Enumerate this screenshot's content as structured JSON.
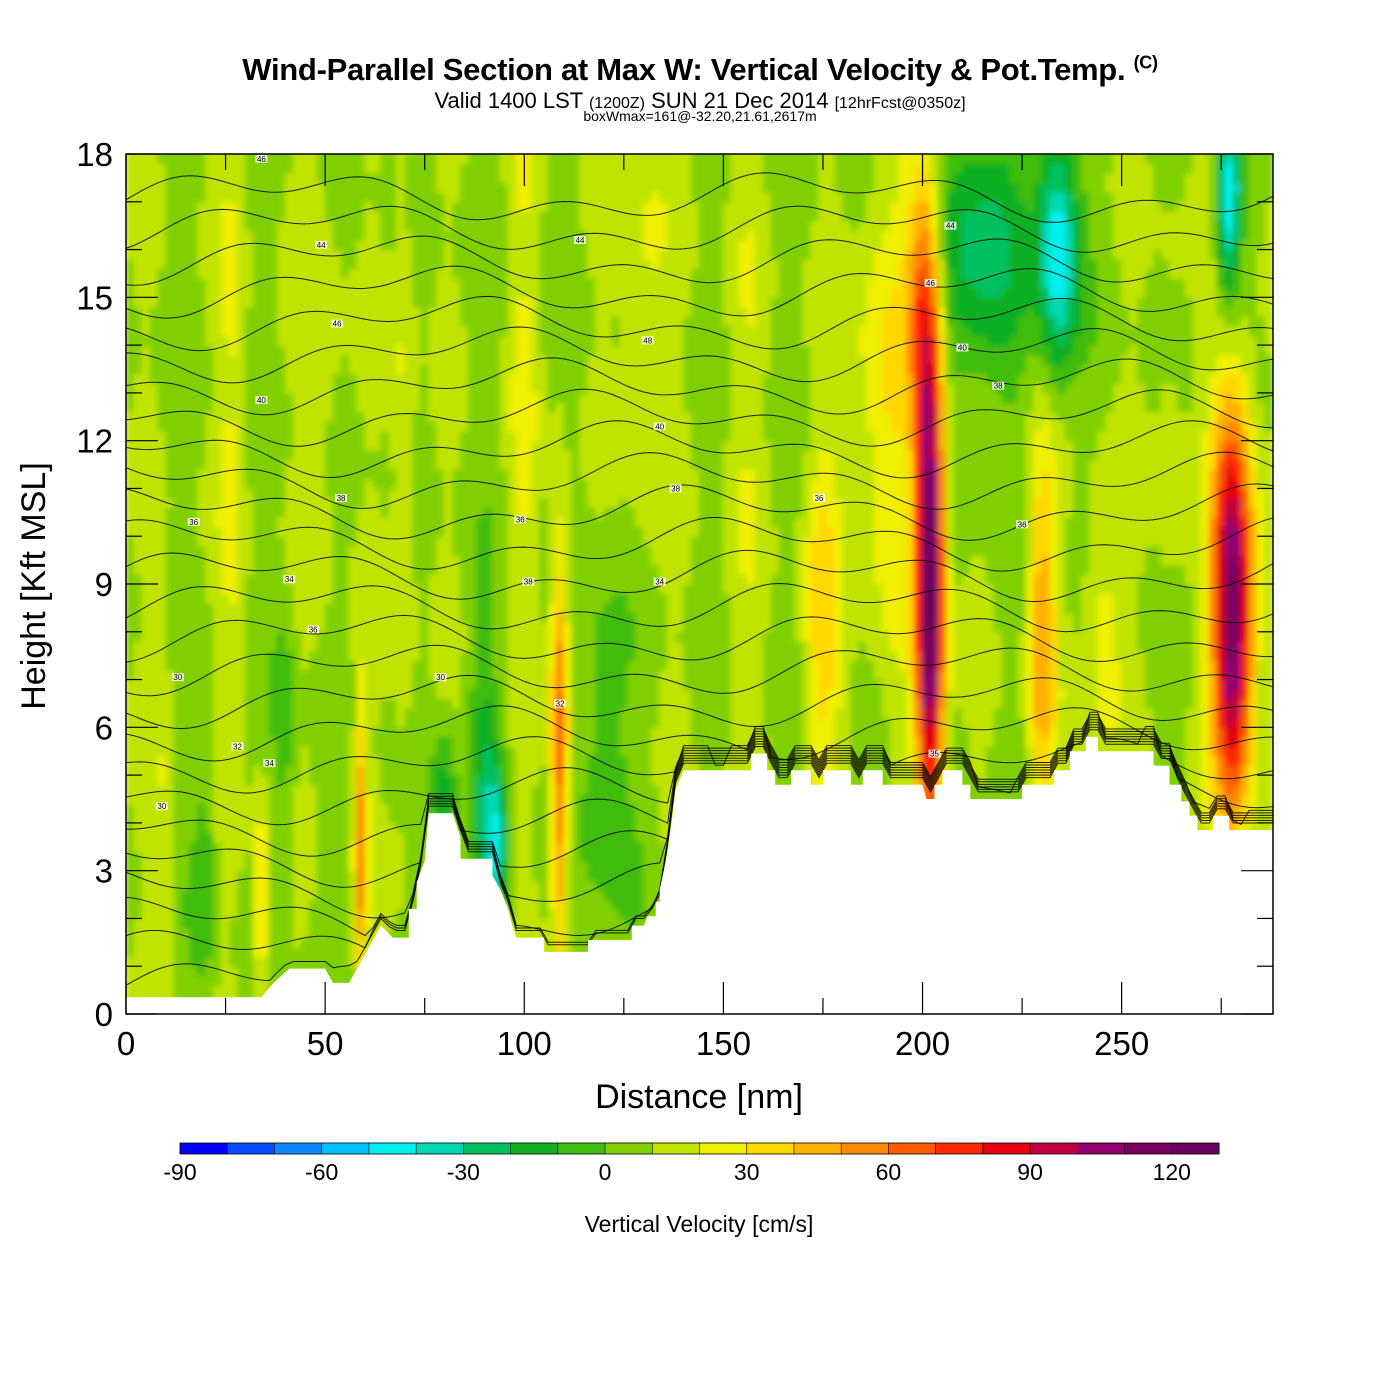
{
  "header": {
    "title": "Wind-Parallel Section at Max W: Vertical Velocity & Pot.Temp.",
    "title_mark": "(C)",
    "subtitle_main": "Valid 1400 LST",
    "subtitle_utc": "(1200Z)",
    "subtitle_date": "SUN 21 Dec 2014",
    "subtitle_fcst": "[12hrFcst@0350z]",
    "note": "boxWmax=161@-32.20,21.61,2617m"
  },
  "chart_data": {
    "type": "heatmap",
    "title": "Wind-Parallel Section at Max W: Vertical Velocity & Pot.Temp.",
    "xlabel": "Distance [nm]",
    "ylabel": "Height [Kft MSL]",
    "xlim": [
      0,
      288
    ],
    "ylim": [
      0,
      18
    ],
    "xticks": [
      "0",
      "50",
      "100",
      "150",
      "200",
      "250"
    ],
    "xtick_values": [
      0,
      50,
      100,
      150,
      200,
      250
    ],
    "yticks": [
      "0",
      "3",
      "6",
      "9",
      "12",
      "15",
      "18"
    ],
    "ytick_values": [
      0,
      3,
      6,
      9,
      12,
      15,
      18
    ],
    "colorbar": {
      "label": "Vertical Velocity [cm/s]",
      "range": [
        -90,
        130
      ],
      "step": 10,
      "tick_labels": [
        "-90",
        "-60",
        "-30",
        "0",
        "30",
        "60",
        "90",
        "120"
      ],
      "tick_values": [
        -90,
        -60,
        -30,
        0,
        30,
        60,
        90,
        120
      ],
      "colors": [
        "#0000ff",
        "#0a4dff",
        "#0f87ff",
        "#00c0ff",
        "#00f0f0",
        "#00d8b0",
        "#00c060",
        "#10b020",
        "#40bc10",
        "#80d000",
        "#c0e400",
        "#f0f000",
        "#ffd800",
        "#ffb000",
        "#ff8800",
        "#ff5a00",
        "#ff2800",
        "#e60010",
        "#c00040",
        "#900070",
        "#7a005f",
        "#6a0060"
      ]
    },
    "terrain_kft": [
      [
        0,
        0.35
      ],
      [
        34,
        0.35
      ],
      [
        37,
        0.65
      ],
      [
        41,
        0.95
      ],
      [
        50,
        0.95
      ],
      [
        52,
        0.65
      ],
      [
        56,
        0.65
      ],
      [
        58,
        0.95
      ],
      [
        60,
        1.25
      ],
      [
        62,
        1.55
      ],
      [
        64,
        1.85
      ],
      [
        67,
        1.6
      ],
      [
        71,
        1.6
      ],
      [
        71,
        2.2
      ],
      [
        73,
        2.2
      ],
      [
        73,
        2.75
      ],
      [
        75,
        3.2
      ],
      [
        76,
        4.2
      ],
      [
        82,
        4.2
      ],
      [
        84,
        3.7
      ],
      [
        84,
        3.25
      ],
      [
        87,
        3.25
      ],
      [
        92,
        3.25
      ],
      [
        92,
        2.9
      ],
      [
        94,
        2.6
      ],
      [
        96,
        2.2
      ],
      [
        97,
        1.85
      ],
      [
        98,
        1.6
      ],
      [
        105,
        1.6
      ],
      [
        105,
        1.3
      ],
      [
        109,
        1.3
      ],
      [
        116,
        1.3
      ],
      [
        116,
        1.55
      ],
      [
        127,
        1.55
      ],
      [
        127,
        1.85
      ],
      [
        130,
        1.85
      ],
      [
        131,
        2.05
      ],
      [
        133,
        2.05
      ],
      [
        133,
        2.35
      ],
      [
        134,
        2.35
      ],
      [
        134,
        2.6
      ],
      [
        135,
        3.0
      ],
      [
        136,
        3.4
      ],
      [
        137,
        4.0
      ],
      [
        138,
        4.7
      ],
      [
        140,
        5.1
      ],
      [
        157,
        5.1
      ],
      [
        157,
        5.45
      ],
      [
        161,
        5.45
      ],
      [
        161,
        5.1
      ],
      [
        163,
        5.1
      ],
      [
        163,
        4.8
      ],
      [
        167,
        4.8
      ],
      [
        167,
        5.1
      ],
      [
        172,
        5.1
      ],
      [
        172,
        4.8
      ],
      [
        175,
        4.8
      ],
      [
        175,
        5.1
      ],
      [
        182,
        5.1
      ],
      [
        182,
        4.8
      ],
      [
        185,
        4.8
      ],
      [
        185,
        5.1
      ],
      [
        190,
        5.1
      ],
      [
        190,
        4.8
      ],
      [
        194,
        4.8
      ],
      [
        194,
        4.8
      ],
      [
        199,
        4.8
      ],
      [
        200,
        4.8
      ],
      [
        201,
        4.5
      ],
      [
        203,
        4.5
      ],
      [
        203,
        4.8
      ],
      [
        205,
        4.8
      ],
      [
        205,
        5.1
      ],
      [
        210,
        5.1
      ],
      [
        210,
        4.8
      ],
      [
        212,
        4.8
      ],
      [
        212,
        4.5
      ],
      [
        216,
        4.5
      ],
      [
        225,
        4.5
      ],
      [
        225,
        4.8
      ],
      [
        233,
        4.8
      ],
      [
        233,
        5.1
      ],
      [
        237,
        5.1
      ],
      [
        237,
        5.5
      ],
      [
        241,
        5.5
      ],
      [
        241,
        5.8
      ],
      [
        244,
        5.8
      ],
      [
        244,
        5.5
      ],
      [
        258,
        5.5
      ],
      [
        258,
        5.2
      ],
      [
        262,
        5.2
      ],
      [
        262,
        4.8
      ],
      [
        265,
        4.8
      ],
      [
        265,
        4.45
      ],
      [
        267,
        4.45
      ],
      [
        267,
        4.15
      ],
      [
        269,
        4.15
      ],
      [
        269,
        3.85
      ],
      [
        273,
        3.85
      ],
      [
        273,
        4.15
      ],
      [
        277,
        4.15
      ],
      [
        277,
        3.85
      ],
      [
        288,
        3.85
      ]
    ],
    "fields": [
      {
        "x": 10,
        "z": 4,
        "w": 3,
        "h": 5,
        "v": 10
      },
      {
        "x": 20,
        "z": 3,
        "w": 3,
        "h": 3,
        "v": -15
      },
      {
        "x": 27,
        "z": 12,
        "w": 4,
        "h": 8,
        "v": 12
      },
      {
        "x": 34,
        "z": 2.2,
        "w": 2,
        "h": 2.4,
        "v": 30
      },
      {
        "x": 40,
        "z": 6,
        "w": 3,
        "h": 3,
        "v": -15
      },
      {
        "x": 50,
        "z": 14,
        "w": 5,
        "h": 6,
        "v": 10
      },
      {
        "x": 59,
        "z": 3.5,
        "w": 1.6,
        "h": 3,
        "v": 45
      },
      {
        "x": 70,
        "z": 12,
        "w": 3,
        "h": 8,
        "v": 15
      },
      {
        "x": 80,
        "z": 4.5,
        "w": 3,
        "h": 1.5,
        "v": -25
      },
      {
        "x": 90,
        "z": 5,
        "w": 4,
        "h": 3,
        "v": -20
      },
      {
        "x": 93,
        "z": 3.5,
        "w": 3,
        "h": 1.5,
        "v": -40
      },
      {
        "x": 100,
        "z": 13,
        "w": 4,
        "h": 6,
        "v": 12
      },
      {
        "x": 109,
        "z": 5.5,
        "w": 2.2,
        "h": 4.5,
        "v": 60
      },
      {
        "x": 120,
        "z": 5.5,
        "w": 6,
        "h": 4,
        "v": -18
      },
      {
        "x": 130,
        "z": 15,
        "w": 6,
        "h": 5,
        "v": 15
      },
      {
        "x": 155,
        "z": 12,
        "w": 6,
        "h": 7,
        "v": 8
      },
      {
        "x": 175,
        "z": 8,
        "w": 5,
        "h": 4,
        "v": 25
      },
      {
        "x": 190,
        "z": 13,
        "w": 8,
        "h": 5,
        "v": 22
      },
      {
        "x": 202,
        "z": 9,
        "w": 3.5,
        "h": 5.5,
        "v": 125
      },
      {
        "x": 200,
        "z": 15,
        "w": 4,
        "h": 3,
        "v": 40
      },
      {
        "x": 215,
        "z": 16,
        "w": 10,
        "h": 3,
        "v": -35
      },
      {
        "x": 234,
        "z": 16,
        "w": 5,
        "h": 2.5,
        "v": -60
      },
      {
        "x": 230,
        "z": 8,
        "w": 3.5,
        "h": 4,
        "v": 40
      },
      {
        "x": 245,
        "z": 8,
        "w": 5,
        "h": 3,
        "v": 20
      },
      {
        "x": 262,
        "z": 12,
        "w": 4,
        "h": 5,
        "v": 10
      },
      {
        "x": 278,
        "z": 7.5,
        "w": 5,
        "h": 3.5,
        "v": 100
      },
      {
        "x": 278,
        "z": 11,
        "w": 5,
        "h": 3,
        "v": 45
      },
      {
        "x": 277,
        "z": 17,
        "w": 3,
        "h": 2,
        "v": -55
      }
    ],
    "contour_labels": [
      {
        "x": 34,
        "y": 17.9,
        "text": "46"
      },
      {
        "x": 49,
        "y": 16.1,
        "text": "44"
      },
      {
        "x": 53,
        "y": 14.45,
        "text": "46"
      },
      {
        "x": 34,
        "y": 12.85,
        "text": "40"
      },
      {
        "x": 54,
        "y": 10.8,
        "text": "38"
      },
      {
        "x": 17,
        "y": 10.3,
        "text": "36"
      },
      {
        "x": 41,
        "y": 9.1,
        "text": "34"
      },
      {
        "x": 47,
        "y": 8.05,
        "text": "36"
      },
      {
        "x": 13,
        "y": 7.05,
        "text": "30"
      },
      {
        "x": 28,
        "y": 5.6,
        "text": "32"
      },
      {
        "x": 36,
        "y": 5.25,
        "text": "34"
      },
      {
        "x": 9,
        "y": 4.35,
        "text": "30"
      },
      {
        "x": 79,
        "y": 7.05,
        "text": "30"
      },
      {
        "x": 114,
        "y": 16.2,
        "text": "44"
      },
      {
        "x": 131,
        "y": 14.1,
        "text": "48"
      },
      {
        "x": 134,
        "y": 12.3,
        "text": "40"
      },
      {
        "x": 99,
        "y": 10.35,
        "text": "36"
      },
      {
        "x": 101,
        "y": 9.05,
        "text": "38"
      },
      {
        "x": 138,
        "y": 11.0,
        "text": "38"
      },
      {
        "x": 134,
        "y": 9.05,
        "text": "34"
      },
      {
        "x": 109,
        "y": 6.5,
        "text": "32"
      },
      {
        "x": 174,
        "y": 10.8,
        "text": "36"
      },
      {
        "x": 207,
        "y": 16.5,
        "text": "44"
      },
      {
        "x": 202,
        "y": 15.3,
        "text": "46"
      },
      {
        "x": 210,
        "y": 13.95,
        "text": "40"
      },
      {
        "x": 219,
        "y": 13.15,
        "text": "38"
      },
      {
        "x": 225,
        "y": 10.25,
        "text": "36"
      },
      {
        "x": 203,
        "y": 5.45,
        "text": "35"
      }
    ]
  }
}
